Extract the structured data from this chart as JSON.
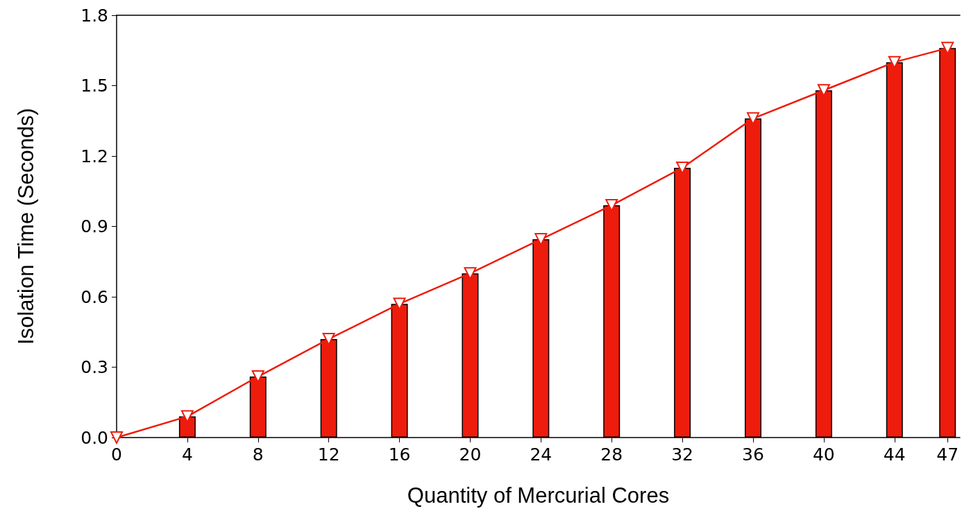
{
  "chart_data": {
    "type": "bar",
    "xlabel": "Quantity of Mercurial Cores",
    "ylabel": "Isolation Time (Seconds)",
    "xlim": [
      0,
      47.7
    ],
    "xticks": [
      0,
      4,
      8,
      12,
      16,
      20,
      24,
      28,
      32,
      36,
      40,
      44,
      47
    ],
    "ylim": [
      0,
      1.8
    ],
    "yticks": [
      {
        "value": 0,
        "label": "0.0"
      },
      0.3,
      0.6,
      0.9,
      1.2,
      1.5,
      1.8
    ],
    "grid": false,
    "marker": "triangle",
    "series": [
      {
        "color": "#ee1c0c",
        "x": [
          4,
          8,
          12,
          16,
          20,
          24,
          28,
          32,
          36,
          40,
          44,
          47
        ],
        "values": [
          0.09,
          0.26,
          0.42,
          0.57,
          0.7,
          0.845,
          0.99,
          1.15,
          1.36,
          1.48,
          1.6,
          1.66
        ]
      },
      {
        "type": "line",
        "color": "#ee1c0c",
        "x": [
          0,
          4,
          8,
          12,
          16,
          20,
          24,
          28,
          32,
          36,
          40,
          44,
          47
        ],
        "values": [
          0,
          0.09,
          0.26,
          0.42,
          0.57,
          0.7,
          0.845,
          0.99,
          1.15,
          1.36,
          1.48,
          1.6,
          1.66
        ]
      }
    ]
  }
}
